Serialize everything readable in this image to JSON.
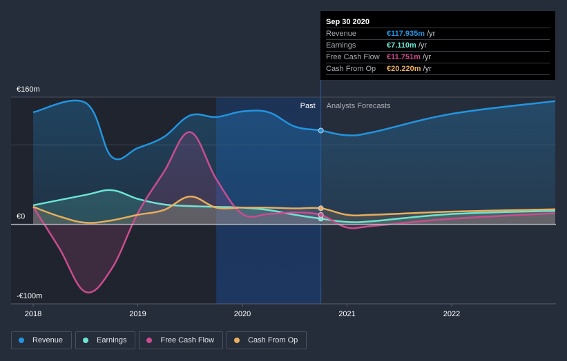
{
  "tooltip": {
    "date": "Sep 30 2020",
    "rows": [
      {
        "label": "Revenue",
        "value": "€117.935m",
        "unit": "/yr",
        "color": "#2394df"
      },
      {
        "label": "Earnings",
        "value": "€7.110m",
        "unit": "/yr",
        "color": "#6ce5d3"
      },
      {
        "label": "Free Cash Flow",
        "value": "€11.751m",
        "unit": "/yr",
        "color": "#c94d8f"
      },
      {
        "label": "Cash From Op",
        "value": "€20.220m",
        "unit": "/yr",
        "color": "#e8ae5c"
      }
    ]
  },
  "legend": [
    {
      "label": "Revenue",
      "color": "#2394df"
    },
    {
      "label": "Earnings",
      "color": "#6ce5d3"
    },
    {
      "label": "Free Cash Flow",
      "color": "#c94d8f"
    },
    {
      "label": "Cash From Op",
      "color": "#e8ae5c"
    }
  ],
  "chart_data": {
    "type": "line",
    "title": "",
    "xlabel": "",
    "ylabel": "",
    "currency": "EUR",
    "units": "€m",
    "ylim": [
      -100,
      160
    ],
    "xlim": [
      2017.79,
      2022.99
    ],
    "y_ticks": [
      {
        "value": 160,
        "label": "€160m"
      },
      {
        "value": 0,
        "label": "€0"
      },
      {
        "value": -100,
        "label": "-€100m"
      }
    ],
    "gridlines": [
      160,
      100
    ],
    "x_ticks": [
      {
        "value": 2018,
        "label": "2018"
      },
      {
        "value": 2019,
        "label": "2019"
      },
      {
        "value": 2020,
        "label": "2020"
      },
      {
        "value": 2021,
        "label": "2021"
      },
      {
        "value": 2022,
        "label": "2022"
      }
    ],
    "divider_x": 2020.75,
    "highlight_start_x": 2019.75,
    "region_labels": {
      "past": "Past",
      "forecast": "Analysts Forecasts"
    },
    "series": [
      {
        "name": "Revenue",
        "color": "#2394df",
        "points": [
          [
            2018.0,
            141
          ],
          [
            2018.5,
            153
          ],
          [
            2018.75,
            85
          ],
          [
            2019.0,
            96
          ],
          [
            2019.25,
            110
          ],
          [
            2019.5,
            137
          ],
          [
            2019.75,
            135
          ],
          [
            2020.0,
            142
          ],
          [
            2020.25,
            141
          ],
          [
            2020.5,
            123
          ],
          [
            2020.75,
            118
          ],
          [
            2021.0,
            112
          ],
          [
            2021.25,
            116
          ],
          [
            2022.0,
            139
          ],
          [
            2022.99,
            155
          ]
        ]
      },
      {
        "name": "Earnings",
        "color": "#6ce5d3",
        "points": [
          [
            2018.0,
            24
          ],
          [
            2018.5,
            37
          ],
          [
            2018.75,
            43
          ],
          [
            2019.0,
            32
          ],
          [
            2019.25,
            25
          ],
          [
            2019.5,
            23
          ],
          [
            2019.75,
            22
          ],
          [
            2020.0,
            21
          ],
          [
            2020.25,
            18
          ],
          [
            2020.5,
            12
          ],
          [
            2020.75,
            7.1
          ],
          [
            2021.0,
            3
          ],
          [
            2021.25,
            4
          ],
          [
            2022.0,
            13
          ],
          [
            2022.99,
            17
          ]
        ]
      },
      {
        "name": "Free Cash Flow",
        "color": "#c94d8f",
        "points": [
          [
            2018.0,
            22
          ],
          [
            2018.25,
            -30
          ],
          [
            2018.5,
            -85
          ],
          [
            2018.75,
            -56
          ],
          [
            2019.0,
            14
          ],
          [
            2019.25,
            66
          ],
          [
            2019.5,
            116
          ],
          [
            2019.75,
            57
          ],
          [
            2020.0,
            13
          ],
          [
            2020.25,
            13
          ],
          [
            2020.5,
            15
          ],
          [
            2020.75,
            11.8
          ],
          [
            2021.0,
            -4
          ],
          [
            2021.25,
            -2
          ],
          [
            2022.0,
            7
          ],
          [
            2022.99,
            14
          ]
        ]
      },
      {
        "name": "Cash From Op",
        "color": "#e8ae5c",
        "points": [
          [
            2018.0,
            22
          ],
          [
            2018.25,
            10
          ],
          [
            2018.5,
            2
          ],
          [
            2018.75,
            5
          ],
          [
            2019.0,
            12
          ],
          [
            2019.25,
            18
          ],
          [
            2019.5,
            35
          ],
          [
            2019.75,
            21
          ],
          [
            2020.0,
            21
          ],
          [
            2020.25,
            21
          ],
          [
            2020.5,
            20
          ],
          [
            2020.75,
            20.2
          ],
          [
            2021.0,
            12
          ],
          [
            2021.25,
            12
          ],
          [
            2022.0,
            16
          ],
          [
            2022.99,
            19
          ]
        ]
      }
    ]
  }
}
